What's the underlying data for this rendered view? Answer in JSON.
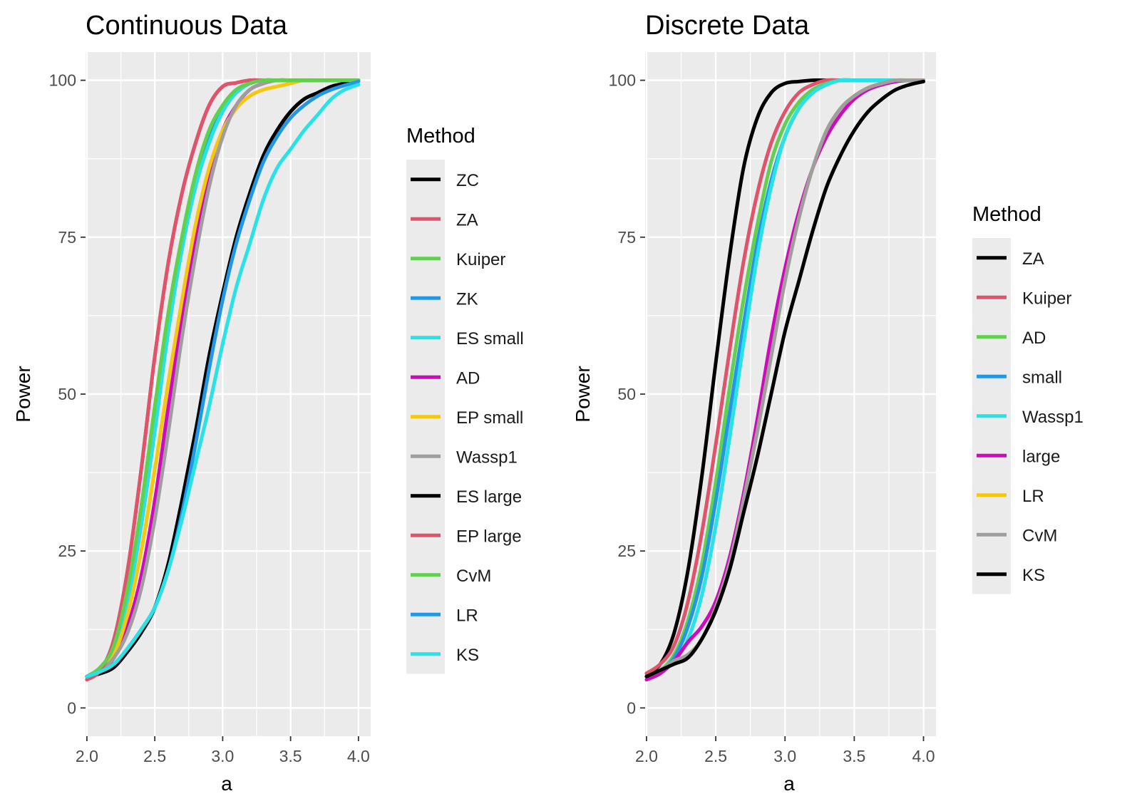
{
  "chart_data": [
    {
      "type": "line",
      "title": "Continuous Data",
      "xlabel": "a",
      "ylabel": "Power",
      "xlim": [
        1.99,
        4.09
      ],
      "ylim": [
        0,
        100
      ],
      "x_ticks": [
        "2.0",
        "2.5",
        "3.0",
        "3.5",
        "4.0"
      ],
      "y_ticks": [
        "0",
        "25",
        "50",
        "75",
        "100"
      ],
      "legend_title": "Method",
      "grid": true,
      "legend_position": "right",
      "x": [
        2.0,
        2.1,
        2.2,
        2.3,
        2.4,
        2.5,
        2.6,
        2.7,
        2.8,
        2.9,
        3.0,
        3.1,
        3.2,
        3.3,
        3.4,
        3.5,
        3.6,
        3.7,
        3.8,
        3.9,
        4.0
      ],
      "series": [
        {
          "name": "ZC",
          "color": "#000000",
          "values": [
            5,
            5.5,
            6.5,
            9,
            12,
            16,
            23,
            33,
            44,
            56,
            66,
            75,
            82,
            88,
            92,
            95,
            97,
            98,
            99,
            99.5,
            100
          ]
        },
        {
          "name": "ZA",
          "color": "#df536b",
          "values": [
            4.5,
            6,
            11,
            22,
            38,
            56,
            71,
            82,
            90,
            96,
            99,
            99.6,
            100,
            100,
            100,
            100,
            100,
            100,
            100,
            100,
            100
          ]
        },
        {
          "name": "Kuiper",
          "color": "#61d04f",
          "values": [
            5,
            6.5,
            10,
            19,
            32,
            48,
            63,
            75,
            85,
            92,
            96,
            98.5,
            99.5,
            100,
            100,
            100,
            100,
            100,
            100,
            100,
            100
          ]
        },
        {
          "name": "ZK",
          "color": "#2297e6",
          "values": [
            5,
            6,
            9,
            17,
            30,
            45,
            61,
            74,
            84,
            91,
            95.5,
            98,
            99.5,
            100,
            100,
            100,
            100,
            100,
            100,
            100,
            100
          ]
        },
        {
          "name": "ES small",
          "color": "#28e2e5",
          "values": [
            5,
            6,
            9,
            17,
            29,
            44,
            60,
            73,
            83,
            90,
            95,
            98,
            99.5,
            100,
            100,
            100,
            100,
            100,
            100,
            100,
            100
          ]
        },
        {
          "name": "AD",
          "color": "#cd0bbc",
          "values": [
            5,
            6,
            8,
            13,
            21,
            33,
            48,
            62,
            75,
            85,
            92,
            96,
            98.5,
            99.5,
            100,
            100,
            100,
            100,
            100,
            100,
            100
          ]
        },
        {
          "name": "EP small",
          "color": "#f5c710",
          "values": [
            5,
            6,
            8.5,
            15,
            25,
            38,
            52,
            65,
            77,
            86,
            92,
            95.5,
            97.5,
            98.5,
            99,
            99.5,
            100,
            100,
            100,
            100,
            100
          ]
        },
        {
          "name": "Wassp1",
          "color": "#9e9e9e",
          "values": [
            5,
            6,
            8,
            12,
            19,
            30,
            44,
            59,
            72,
            83,
            91,
            96,
            98.5,
            99.5,
            100,
            100,
            100,
            100,
            100,
            100,
            100
          ]
        },
        {
          "name": "ES large",
          "color": "#000000",
          "values": [
            5,
            5.5,
            6.5,
            9,
            12,
            16,
            23,
            33,
            44,
            56,
            66,
            75,
            82,
            88,
            92,
            95,
            97,
            98,
            99,
            99.5,
            100
          ]
        },
        {
          "name": "EP large",
          "color": "#df536b",
          "values": [
            4.5,
            6,
            11,
            22,
            38,
            56,
            71,
            82,
            90,
            96,
            99,
            99.6,
            100,
            100,
            100,
            100,
            100,
            100,
            100,
            100,
            100
          ]
        },
        {
          "name": "CvM",
          "color": "#61d04f",
          "values": [
            5,
            6.5,
            10,
            19,
            32,
            48,
            63,
            75,
            85,
            92,
            96,
            98.5,
            99.5,
            100,
            100,
            100,
            100,
            100,
            100,
            100,
            100
          ]
        },
        {
          "name": "LR",
          "color": "#2297e6",
          "values": [
            5,
            5.8,
            7,
            9.5,
            12.5,
            16,
            22,
            31,
            42,
            54,
            65,
            74,
            81,
            87,
            91,
            94,
            96,
            97.5,
            98.5,
            99.2,
            99.8
          ]
        },
        {
          "name": "KS",
          "color": "#28e2e5",
          "values": [
            5,
            5.8,
            7,
            9.5,
            12.5,
            16,
            22,
            30,
            39,
            48,
            58,
            67,
            74,
            81,
            86,
            89,
            92,
            94.5,
            97,
            98.5,
            99.3
          ]
        }
      ]
    },
    {
      "type": "line",
      "title": "Discrete Data",
      "xlabel": "a",
      "ylabel": "Power",
      "xlim": [
        1.99,
        4.09
      ],
      "ylim": [
        0,
        100
      ],
      "x_ticks": [
        "2.0",
        "2.5",
        "3.0",
        "3.5",
        "4.0"
      ],
      "y_ticks": [
        "0",
        "25",
        "50",
        "75",
        "100"
      ],
      "legend_title": "Method",
      "grid": true,
      "legend_position": "right",
      "x": [
        2.0,
        2.1,
        2.2,
        2.3,
        2.4,
        2.5,
        2.6,
        2.7,
        2.8,
        2.9,
        3.0,
        3.1,
        3.2,
        3.3,
        3.4,
        3.5,
        3.6,
        3.7,
        3.8,
        3.9,
        4.0
      ],
      "series": [
        {
          "name": "ZA",
          "color": "#000000",
          "values": [
            5.5,
            7,
            12,
            22,
            37,
            55,
            72,
            86,
            94,
            98,
            99.5,
            99.8,
            100,
            100,
            100,
            100,
            100,
            100,
            100,
            100,
            100
          ]
        },
        {
          "name": "Kuiper",
          "color": "#df536b",
          "values": [
            5.5,
            7,
            10,
            17,
            28,
            42,
            57,
            71,
            82,
            90,
            95,
            98,
            99.3,
            100,
            100,
            100,
            100,
            100,
            100,
            100,
            100
          ]
        },
        {
          "name": "AD",
          "color": "#61d04f",
          "values": [
            5,
            6,
            8.5,
            14,
            23,
            36,
            51,
            65,
            77,
            87,
            93,
            96.5,
            98.5,
            99.5,
            100,
            100,
            100,
            100,
            100,
            100,
            100
          ]
        },
        {
          "name": "small",
          "color": "#2297e6",
          "values": [
            5,
            6,
            8,
            13,
            21,
            33,
            47,
            61,
            74,
            84,
            91,
            95.5,
            98,
            99.3,
            100,
            100,
            100,
            100,
            100,
            100,
            100
          ]
        },
        {
          "name": "Wassp1",
          "color": "#28e2e5",
          "values": [
            5,
            6,
            7.5,
            11,
            18,
            29,
            43,
            58,
            72,
            83,
            91,
            95.5,
            98,
            99.3,
            100,
            100,
            100,
            100,
            100,
            100,
            100
          ]
        },
        {
          "name": "large",
          "color": "#cd0bbc",
          "values": [
            4.5,
            5.5,
            7.5,
            10.5,
            13,
            17,
            24,
            34,
            46,
            59,
            70,
            79,
            86,
            91,
            94.5,
            97,
            98.5,
            99.3,
            99.8,
            100,
            100
          ]
        },
        {
          "name": "LR",
          "color": "#f5c710",
          "values": [
            5,
            6,
            7.5,
            8.5,
            11,
            16,
            23,
            33,
            44,
            56,
            68,
            78,
            86,
            92,
            95.5,
            97.5,
            98.8,
            99.5,
            100,
            100,
            100
          ]
        },
        {
          "name": "CvM",
          "color": "#9e9e9e",
          "values": [
            5,
            6,
            7.5,
            8.5,
            11,
            16,
            23,
            33,
            44,
            56,
            68,
            78,
            86,
            92,
            95.5,
            97.5,
            98.8,
            99.5,
            100,
            100,
            100
          ]
        },
        {
          "name": "KS",
          "color": "#000000",
          "values": [
            5,
            6,
            7,
            8,
            11,
            15.5,
            22,
            31,
            40,
            50,
            60,
            68,
            76,
            83,
            88,
            92,
            95,
            97,
            98.5,
            99.3,
            99.8
          ]
        }
      ]
    }
  ]
}
